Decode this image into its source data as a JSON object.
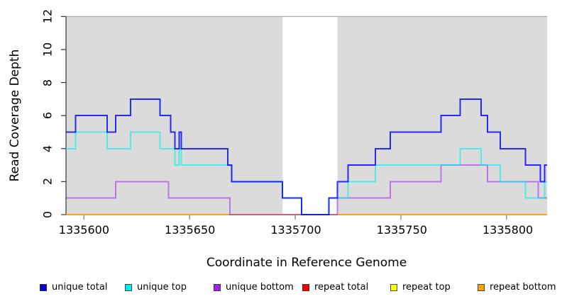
{
  "axes": {
    "x": {
      "label": "Coordinate in Reference Genome",
      "ticks": [
        1335600,
        1335650,
        1335700,
        1335750,
        1335800
      ],
      "lim": [
        1335591.5,
        1335819.2
      ]
    },
    "y": {
      "label": "Read Coverage Depth",
      "ticks": [
        0,
        2,
        4,
        6,
        8,
        10,
        12
      ],
      "lim": [
        0,
        12
      ]
    }
  },
  "chart_data": {
    "type": "line",
    "subtype": "step-coverage",
    "title": "",
    "xlabel": "Coordinate in Reference Genome",
    "ylabel": "Read Coverage Depth",
    "xlim": [
      1335591.5,
      1335819.2
    ],
    "ylim": [
      0,
      12
    ],
    "grid": false,
    "legend_position": "bottom",
    "shaded_regions": [
      {
        "x0": 1335591.5,
        "x1": 1335694,
        "color": "#dbdbdb"
      },
      {
        "x0": 1335720,
        "x1": 1335819.2,
        "color": "#dbdbdb"
      }
    ],
    "top_border_color": "#a6a6a6",
    "axis_color": "#333333",
    "x_tick_color": "#7a7a7a",
    "draw_order": [
      "repeat total",
      "repeat top",
      "repeat bottom",
      "unique bottom",
      "unique top",
      "unique total"
    ],
    "series": [
      {
        "name": "unique total",
        "color": "#0000ff",
        "opacity": 0.82,
        "steps": [
          [
            1335591.5,
            5
          ],
          [
            1335596,
            6
          ],
          [
            1335611,
            5
          ],
          [
            1335615,
            6
          ],
          [
            1335622,
            7
          ],
          [
            1335636,
            6
          ],
          [
            1335641,
            5
          ],
          [
            1335643,
            4
          ],
          [
            1335645,
            5
          ],
          [
            1335646,
            4
          ],
          [
            1335668,
            3
          ],
          [
            1335670,
            2
          ],
          [
            1335694,
            1
          ],
          [
            1335703,
            0
          ],
          [
            1335716,
            1
          ],
          [
            1335720,
            2
          ],
          [
            1335725,
            3
          ],
          [
            1335738,
            4
          ],
          [
            1335745,
            5
          ],
          [
            1335769,
            6
          ],
          [
            1335778,
            7
          ],
          [
            1335788,
            6
          ],
          [
            1335791,
            5
          ],
          [
            1335797,
            4
          ],
          [
            1335809,
            3
          ],
          [
            1335816,
            2
          ],
          [
            1335818,
            3
          ]
        ]
      },
      {
        "name": "unique top",
        "color": "#00eeee",
        "opacity": 0.6,
        "steps": [
          [
            1335591.5,
            4
          ],
          [
            1335596,
            5
          ],
          [
            1335611,
            4
          ],
          [
            1335622,
            5
          ],
          [
            1335636,
            4
          ],
          [
            1335643,
            3
          ],
          [
            1335645,
            4
          ],
          [
            1335646,
            3
          ],
          [
            1335670,
            2
          ],
          [
            1335694,
            1
          ],
          [
            1335703,
            0
          ],
          [
            1335716,
            1
          ],
          [
            1335725,
            2
          ],
          [
            1335738,
            3
          ],
          [
            1335778,
            4
          ],
          [
            1335788,
            3
          ],
          [
            1335797,
            2
          ],
          [
            1335809,
            1
          ],
          [
            1335818,
            2
          ]
        ]
      },
      {
        "name": "unique bottom",
        "color": "#a020f0",
        "opacity": 0.55,
        "steps": [
          [
            1335591.5,
            1
          ],
          [
            1335615,
            2
          ],
          [
            1335640,
            1
          ],
          [
            1335669,
            0
          ],
          [
            1335720,
            1
          ],
          [
            1335745,
            2
          ],
          [
            1335769,
            3
          ],
          [
            1335791,
            2
          ],
          [
            1335815,
            1
          ]
        ]
      },
      {
        "name": "repeat total",
        "color": "#e60000",
        "opacity": 1,
        "steps": [
          [
            1335591.5,
            0
          ]
        ]
      },
      {
        "name": "repeat top",
        "color": "#ffff00",
        "opacity": 1,
        "steps": [
          [
            1335591.5,
            0
          ]
        ]
      },
      {
        "name": "repeat bottom",
        "color": "#ffa500",
        "opacity": 1,
        "steps": [
          [
            1335591.5,
            0
          ]
        ]
      }
    ]
  },
  "legend": {
    "items": [
      {
        "label": "unique total",
        "color": "#0000e0"
      },
      {
        "label": "unique top",
        "color": "#00eeee"
      },
      {
        "label": "unique bottom",
        "color": "#a020f0"
      },
      {
        "label": "repeat total",
        "color": "#f20000"
      },
      {
        "label": "repeat top",
        "color": "#ffff00"
      },
      {
        "label": "repeat bottom",
        "color": "#ffa500"
      }
    ]
  }
}
